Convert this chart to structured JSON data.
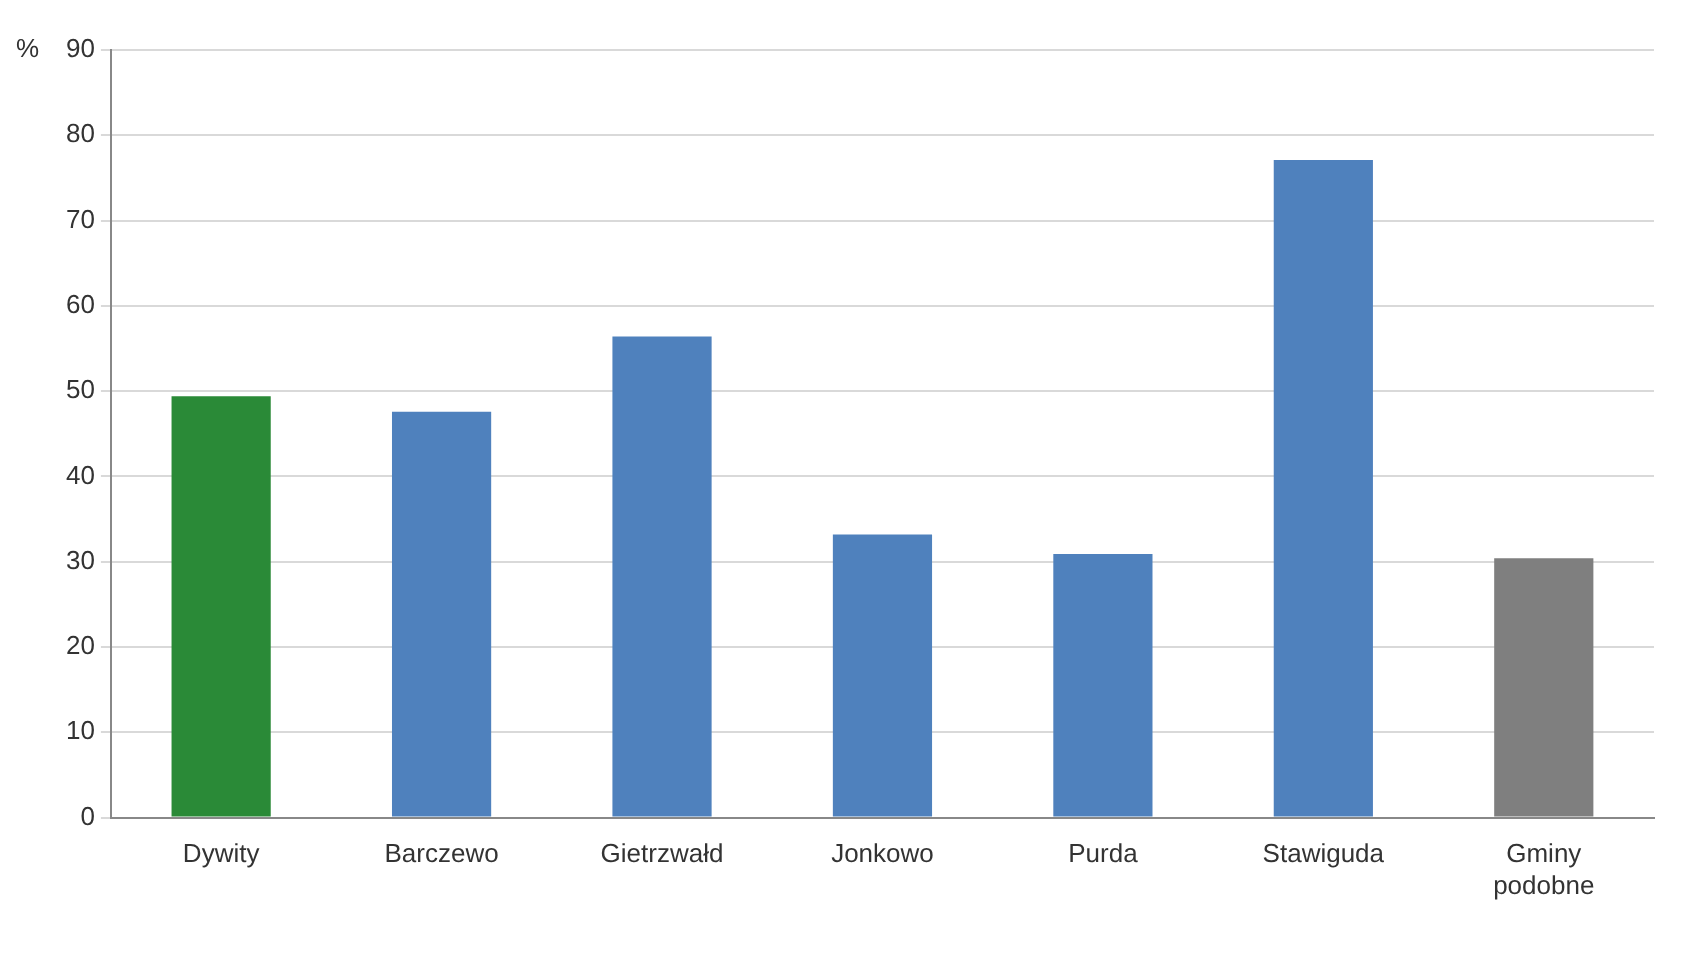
{
  "chart_data": {
    "type": "bar",
    "ylabel": "%",
    "categories": [
      "Dywity",
      "Barczewo",
      "Gietrzwałd",
      "Jonkowo",
      "Purda",
      "Stawiguda",
      "Gminy podobne"
    ],
    "values": [
      49.4,
      47.6,
      56.4,
      33.2,
      30.9,
      77.1,
      30.4
    ],
    "colors": [
      "#2a8a37",
      "#4f81bd",
      "#4f81bd",
      "#4f81bd",
      "#4f81bd",
      "#4f81bd",
      "#7f7f7f"
    ],
    "ylim": [
      0,
      90
    ],
    "yticks": [
      0,
      10,
      20,
      30,
      40,
      50,
      60,
      70,
      80,
      90
    ],
    "grid": "y",
    "legend": false
  }
}
